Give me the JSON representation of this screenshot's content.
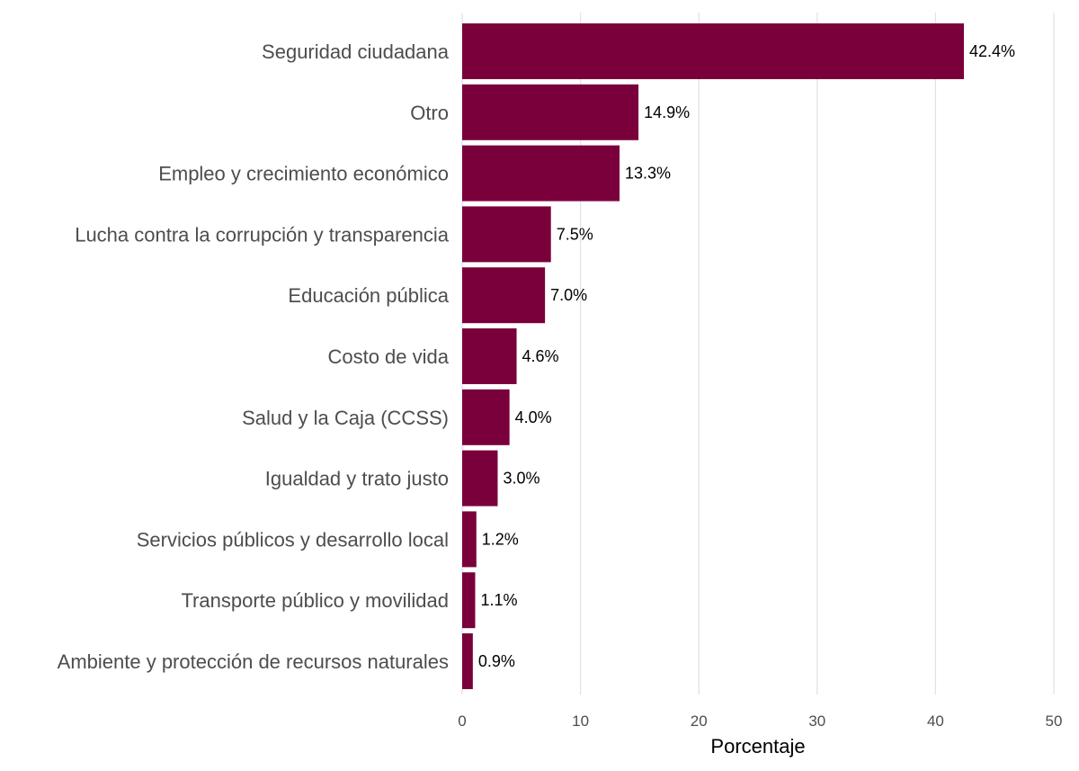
{
  "chart_data": {
    "type": "bar",
    "orientation": "horizontal",
    "title": "",
    "xlabel": "Porcentaje",
    "ylabel": "",
    "xlim": [
      0,
      50
    ],
    "x_ticks": [
      0,
      10,
      20,
      30,
      40,
      50
    ],
    "grid": true,
    "bar_color": "#7a003c",
    "categories": [
      "Seguridad ciudadana",
      "Otro",
      "Empleo y crecimiento económico",
      "Lucha contra la corrupción y transparencia",
      "Educación pública",
      "Costo de vida",
      "Salud y la Caja (CCSS)",
      "Igualdad y trato justo",
      "Servicios públicos y desarrollo local",
      "Transporte público y movilidad",
      "Ambiente y protección de recursos naturales"
    ],
    "values": [
      42.4,
      14.9,
      13.3,
      7.5,
      7.0,
      4.6,
      4.0,
      3.0,
      1.2,
      1.1,
      0.9
    ],
    "value_labels": [
      "42.4%",
      "14.9%",
      "13.3%",
      "7.5%",
      "7.0%",
      "4.6%",
      "4.0%",
      "3.0%",
      "1.2%",
      "1.1%",
      "0.9%"
    ]
  }
}
